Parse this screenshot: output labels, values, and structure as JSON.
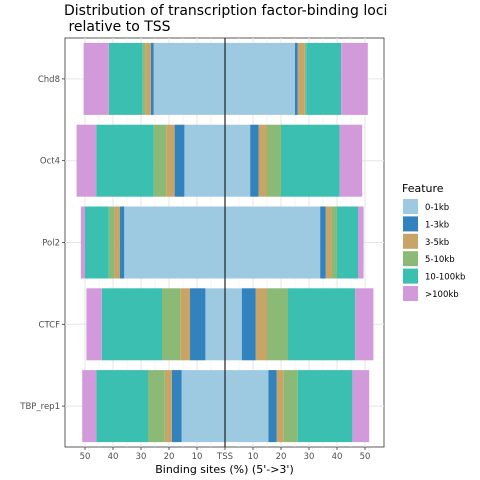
{
  "chart_data": {
    "type": "bar",
    "orientation": "horizontal-stacked-mirrored",
    "title_lines": [
      "Distribution of transcription factor-binding loci",
      " relative to TSS"
    ],
    "xlabel": "Binding sites (%) (5'->3')",
    "ylabel": "",
    "x_ticks": [
      "50",
      "40",
      "30",
      "20",
      "10",
      "TSS",
      "10",
      "20",
      "30",
      "40",
      "50"
    ],
    "xlim": [
      -52,
      52
    ],
    "grid": true,
    "legend": {
      "title": "Feature",
      "position": "right",
      "entries": [
        {
          "label": "0-1kb",
          "color": "#9ECAE1"
        },
        {
          "label": "1-3kb",
          "color": "#3182BD"
        },
        {
          "label": "3-5kb",
          "color": "#C9A467"
        },
        {
          "label": "5-10kb",
          "color": "#8BBA77"
        },
        {
          "label": "10-100kb",
          "color": "#3BBFB0"
        },
        {
          "label": ">100kb",
          "color": "#D29ADB"
        }
      ]
    },
    "categories": [
      "Chd8",
      "Oct4",
      "Pol2",
      "CTCF",
      "TBP_rep1"
    ],
    "upstream": {
      "Chd8": [
        25.5,
        1.0,
        2.0,
        1.0,
        12.0,
        9.0
      ],
      "Oct4": [
        14.5,
        3.5,
        3.0,
        4.5,
        20.5,
        7.0
      ],
      "Pol2": [
        36.0,
        1.5,
        2.0,
        2.0,
        8.5,
        1.5
      ],
      "CTCF": [
        7.0,
        5.5,
        3.5,
        6.5,
        21.5,
        5.5
      ],
      "TBP_rep1": [
        15.5,
        3.5,
        2.5,
        6.0,
        18.5,
        5.0
      ]
    },
    "downstream": {
      "Chd8": [
        25.0,
        1.0,
        2.5,
        0.5,
        12.5,
        9.5
      ],
      "Oct4": [
        9.0,
        3.0,
        3.0,
        5.0,
        21.0,
        8.0
      ],
      "Pol2": [
        34.0,
        2.0,
        2.0,
        2.0,
        7.5,
        2.0
      ],
      "CTCF": [
        6.0,
        5.0,
        4.0,
        7.5,
        24.0,
        6.5
      ],
      "TBP_rep1": [
        15.5,
        3.0,
        2.5,
        5.0,
        19.5,
        6.0
      ]
    }
  }
}
